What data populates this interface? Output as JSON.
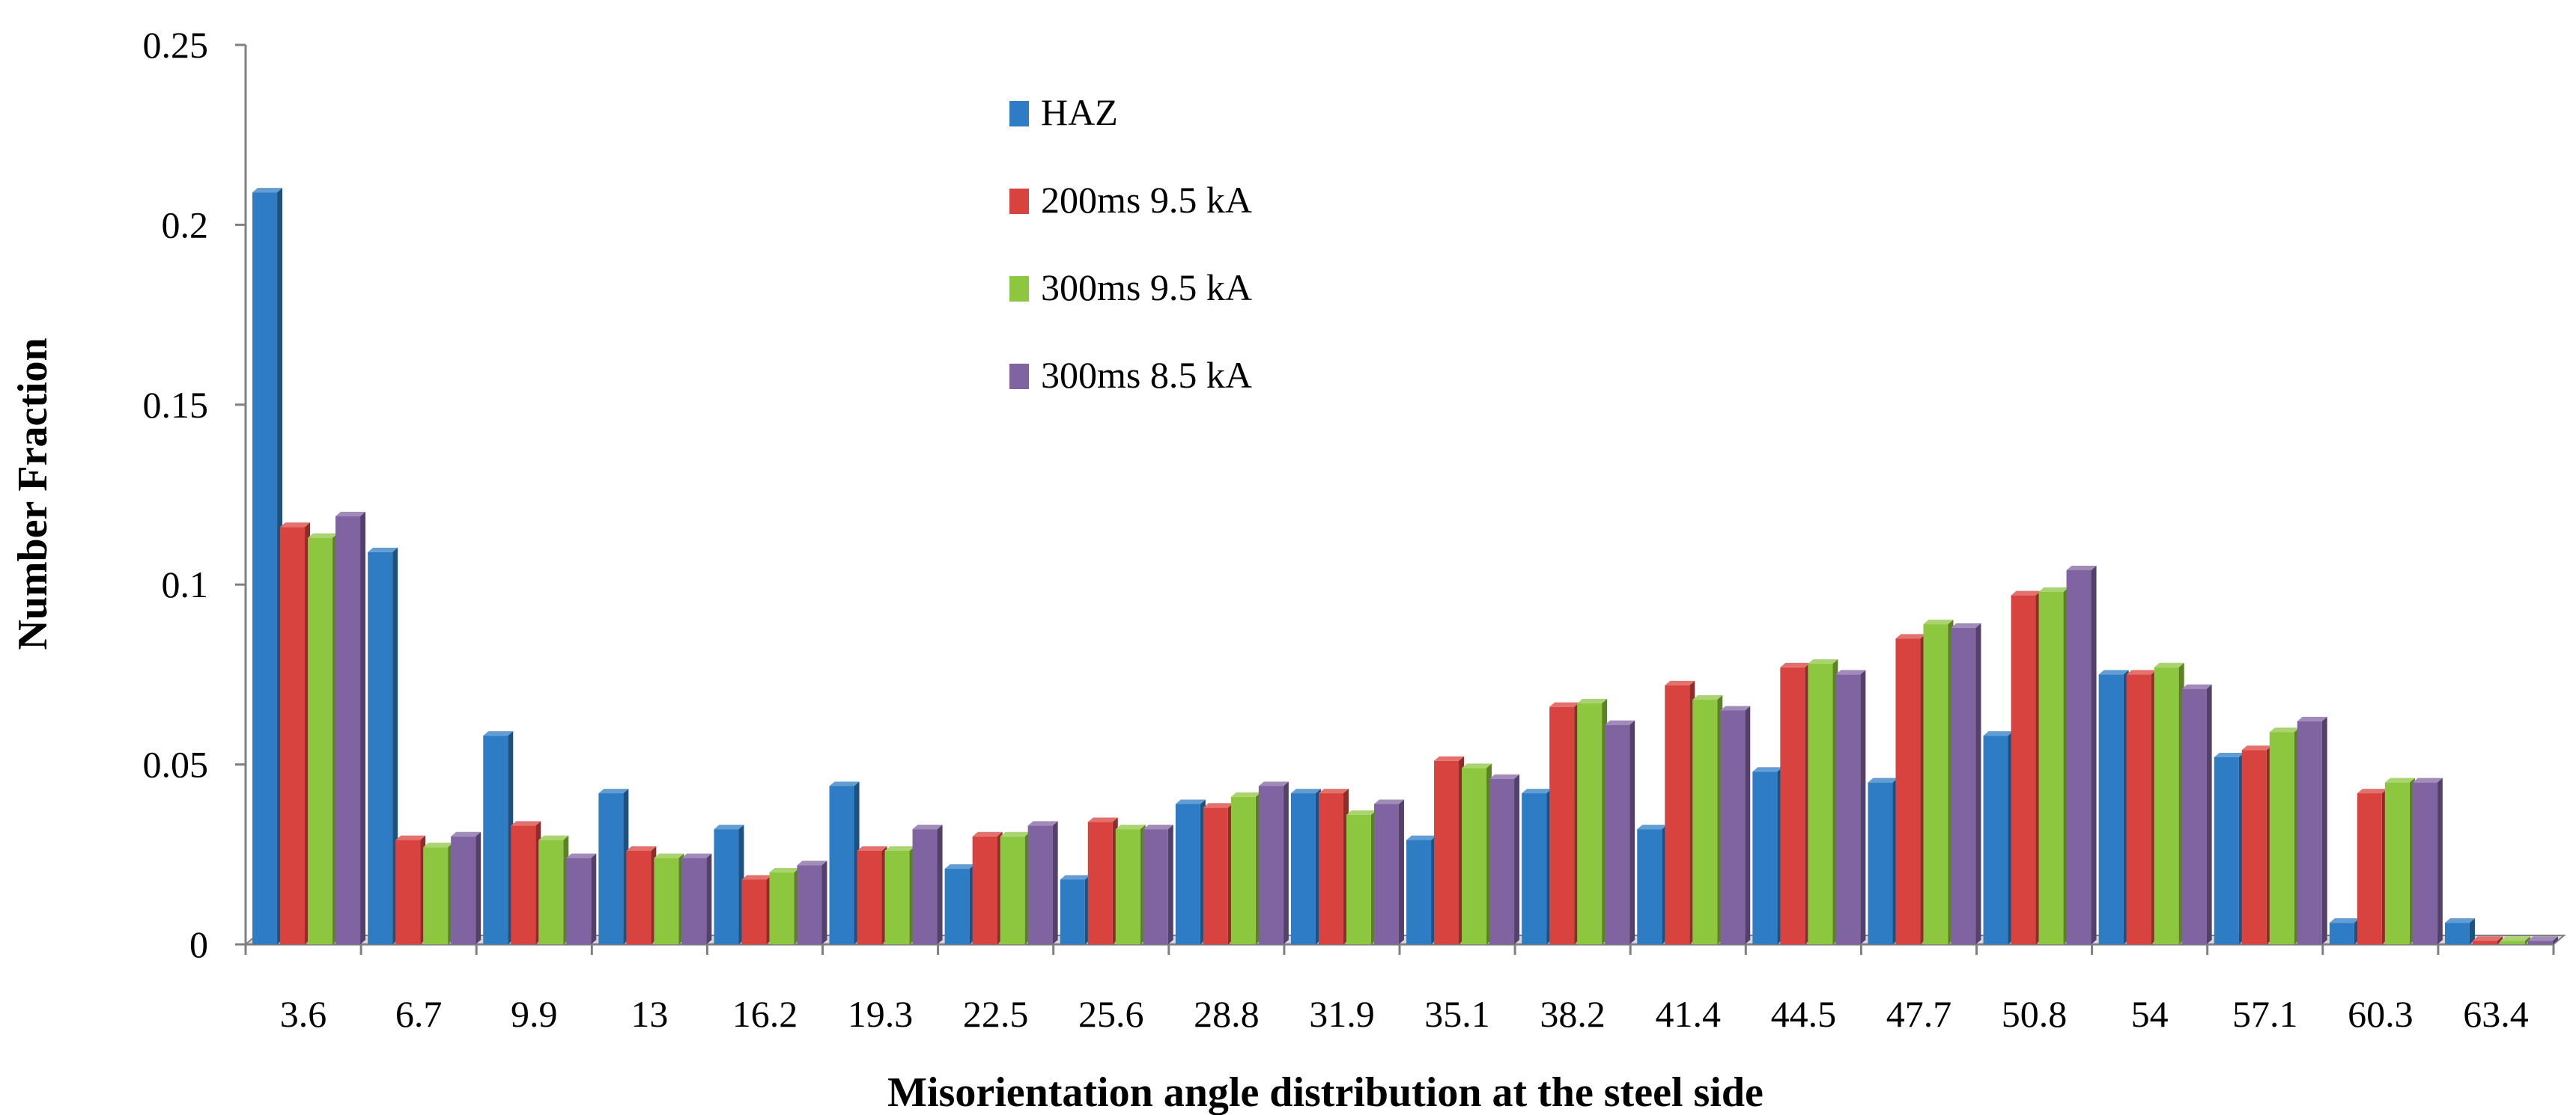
{
  "chart_data": {
    "type": "bar",
    "title": "",
    "xlabel": "Misorientation angle distribution  at the steel side",
    "ylabel": "Number Fraction",
    "ylim": [
      0,
      0.25
    ],
    "yticks": [
      "0",
      "0.05",
      "0.1",
      "0.15",
      "0.2",
      "0.25"
    ],
    "ytick_values": [
      0,
      0.05,
      0.1,
      0.15,
      0.2,
      0.25
    ],
    "categories": [
      "3.6",
      "6.7",
      "9.9",
      "13",
      "16.2",
      "19.3",
      "22.5",
      "25.6",
      "28.8",
      "31.9",
      "35.1",
      "38.2",
      "41.4",
      "44.5",
      "47.7",
      "50.8",
      "54",
      "57.1",
      "60.3",
      "63.4"
    ],
    "legend_position": "top-center",
    "grid": false,
    "series": [
      {
        "name": "HAZ",
        "color": "#2e7cc4",
        "values": [
          0.209,
          0.109,
          0.058,
          0.042,
          0.032,
          0.044,
          0.021,
          0.018,
          0.039,
          0.042,
          0.029,
          0.042,
          0.032,
          0.048,
          0.045,
          0.058,
          0.075,
          0.052,
          0.006,
          0.006
        ]
      },
      {
        "name": "200ms 9.5 kA",
        "color": "#d9433f",
        "values": [
          0.116,
          0.029,
          0.033,
          0.026,
          0.018,
          0.026,
          0.03,
          0.034,
          0.038,
          0.042,
          0.051,
          0.066,
          0.072,
          0.077,
          0.085,
          0.097,
          0.075,
          0.054,
          0.042,
          0.001
        ]
      },
      {
        "name": "300ms 9.5 kA",
        "color": "#8dc63f",
        "values": [
          0.113,
          0.027,
          0.029,
          0.024,
          0.02,
          0.026,
          0.03,
          0.032,
          0.041,
          0.036,
          0.049,
          0.067,
          0.068,
          0.078,
          0.089,
          0.098,
          0.077,
          0.059,
          0.045,
          0.001
        ]
      },
      {
        "name": "300ms 8.5 kA",
        "color": "#8064a2",
        "values": [
          0.119,
          0.03,
          0.024,
          0.024,
          0.022,
          0.032,
          0.033,
          0.032,
          0.044,
          0.039,
          0.046,
          0.061,
          0.065,
          0.075,
          0.088,
          0.104,
          0.071,
          0.062,
          0.045,
          0.001
        ]
      }
    ]
  }
}
